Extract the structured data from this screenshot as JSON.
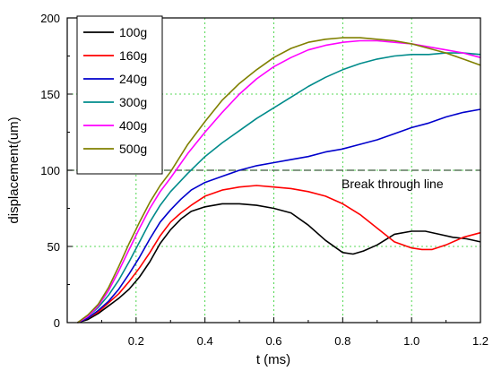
{
  "chart_data": {
    "type": "line",
    "xlabel": "t (ms)",
    "ylabel": "displacement(um)",
    "xlim": [
      0,
      1.2
    ],
    "ylim": [
      0,
      200
    ],
    "xticks": [
      "0.2",
      "0.4",
      "0.6",
      "0.8",
      "1.0",
      "1.2"
    ],
    "yticks": [
      "0",
      "50",
      "100",
      "150",
      "200"
    ],
    "grid": true,
    "legend_position": "top-left",
    "annotation": {
      "text": "Break through  line",
      "y": 100
    },
    "series": [
      {
        "name": "100g",
        "color": "#000000",
        "x": [
          0.03,
          0.06,
          0.09,
          0.12,
          0.15,
          0.18,
          0.21,
          0.24,
          0.27,
          0.3,
          0.33,
          0.36,
          0.4,
          0.45,
          0.5,
          0.55,
          0.6,
          0.65,
          0.7,
          0.75,
          0.8,
          0.83,
          0.86,
          0.9,
          0.95,
          1.0,
          1.04,
          1.08,
          1.12,
          1.16,
          1.2
        ],
        "y": [
          0,
          2,
          6,
          11,
          16,
          22,
          30,
          40,
          52,
          61,
          68,
          73,
          76,
          78,
          78,
          77,
          75,
          72,
          64,
          54,
          46,
          45,
          47,
          51,
          58,
          60,
          60,
          58,
          56,
          55,
          53
        ]
      },
      {
        "name": "160g",
        "color": "#ff0000",
        "x": [
          0.03,
          0.06,
          0.09,
          0.12,
          0.15,
          0.18,
          0.21,
          0.24,
          0.27,
          0.3,
          0.33,
          0.36,
          0.4,
          0.45,
          0.5,
          0.55,
          0.6,
          0.65,
          0.7,
          0.75,
          0.8,
          0.85,
          0.9,
          0.95,
          1.0,
          1.03,
          1.06,
          1.1,
          1.15,
          1.2
        ],
        "y": [
          0,
          3,
          7,
          13,
          19,
          27,
          36,
          46,
          57,
          66,
          72,
          77,
          83,
          87,
          89,
          90,
          89,
          88,
          86,
          83,
          78,
          71,
          62,
          53,
          49,
          48,
          48,
          51,
          56,
          59
        ]
      },
      {
        "name": "240g",
        "color": "#0000cc",
        "x": [
          0.03,
          0.06,
          0.09,
          0.12,
          0.15,
          0.18,
          0.21,
          0.24,
          0.27,
          0.3,
          0.33,
          0.36,
          0.4,
          0.45,
          0.5,
          0.55,
          0.6,
          0.65,
          0.7,
          0.75,
          0.8,
          0.85,
          0.9,
          0.95,
          1.0,
          1.05,
          1.1,
          1.15,
          1.2
        ],
        "y": [
          0,
          3,
          8,
          14,
          22,
          32,
          43,
          55,
          66,
          74,
          81,
          87,
          92,
          96,
          100,
          103,
          105,
          107,
          109,
          112,
          114,
          117,
          120,
          124,
          128,
          131,
          135,
          138,
          140
        ]
      },
      {
        "name": "300g",
        "color": "#008b8b",
        "x": [
          0.03,
          0.06,
          0.09,
          0.12,
          0.15,
          0.18,
          0.21,
          0.24,
          0.27,
          0.3,
          0.35,
          0.4,
          0.45,
          0.5,
          0.55,
          0.6,
          0.65,
          0.7,
          0.75,
          0.8,
          0.85,
          0.9,
          0.95,
          1.0,
          1.05,
          1.1,
          1.15,
          1.2
        ],
        "y": [
          0,
          4,
          10,
          18,
          28,
          40,
          53,
          66,
          77,
          86,
          98,
          109,
          118,
          126,
          134,
          141,
          148,
          155,
          161,
          166,
          170,
          173,
          175,
          176,
          176,
          177,
          177,
          176
        ]
      },
      {
        "name": "400g",
        "color": "#ff00ff",
        "x": [
          0.03,
          0.06,
          0.09,
          0.12,
          0.15,
          0.18,
          0.21,
          0.24,
          0.27,
          0.3,
          0.35,
          0.4,
          0.45,
          0.5,
          0.55,
          0.6,
          0.65,
          0.7,
          0.75,
          0.8,
          0.85,
          0.9,
          0.95,
          1.0,
          1.05,
          1.1,
          1.15,
          1.2
        ],
        "y": [
          0,
          4,
          11,
          21,
          34,
          48,
          62,
          75,
          86,
          95,
          111,
          125,
          138,
          150,
          160,
          168,
          174,
          179,
          182,
          184,
          185,
          185,
          184,
          183,
          181,
          179,
          177,
          174
        ]
      },
      {
        "name": "500g",
        "color": "#808000",
        "x": [
          0.03,
          0.06,
          0.09,
          0.12,
          0.15,
          0.18,
          0.21,
          0.24,
          0.27,
          0.3,
          0.35,
          0.4,
          0.45,
          0.5,
          0.55,
          0.6,
          0.65,
          0.7,
          0.75,
          0.8,
          0.85,
          0.9,
          0.95,
          1.0,
          1.05,
          1.1,
          1.15,
          1.2
        ],
        "y": [
          0,
          5,
          12,
          23,
          37,
          52,
          66,
          79,
          90,
          99,
          117,
          132,
          146,
          157,
          166,
          174,
          180,
          184,
          186,
          187,
          187,
          186,
          185,
          183,
          180,
          177,
          173,
          169
        ]
      }
    ]
  }
}
